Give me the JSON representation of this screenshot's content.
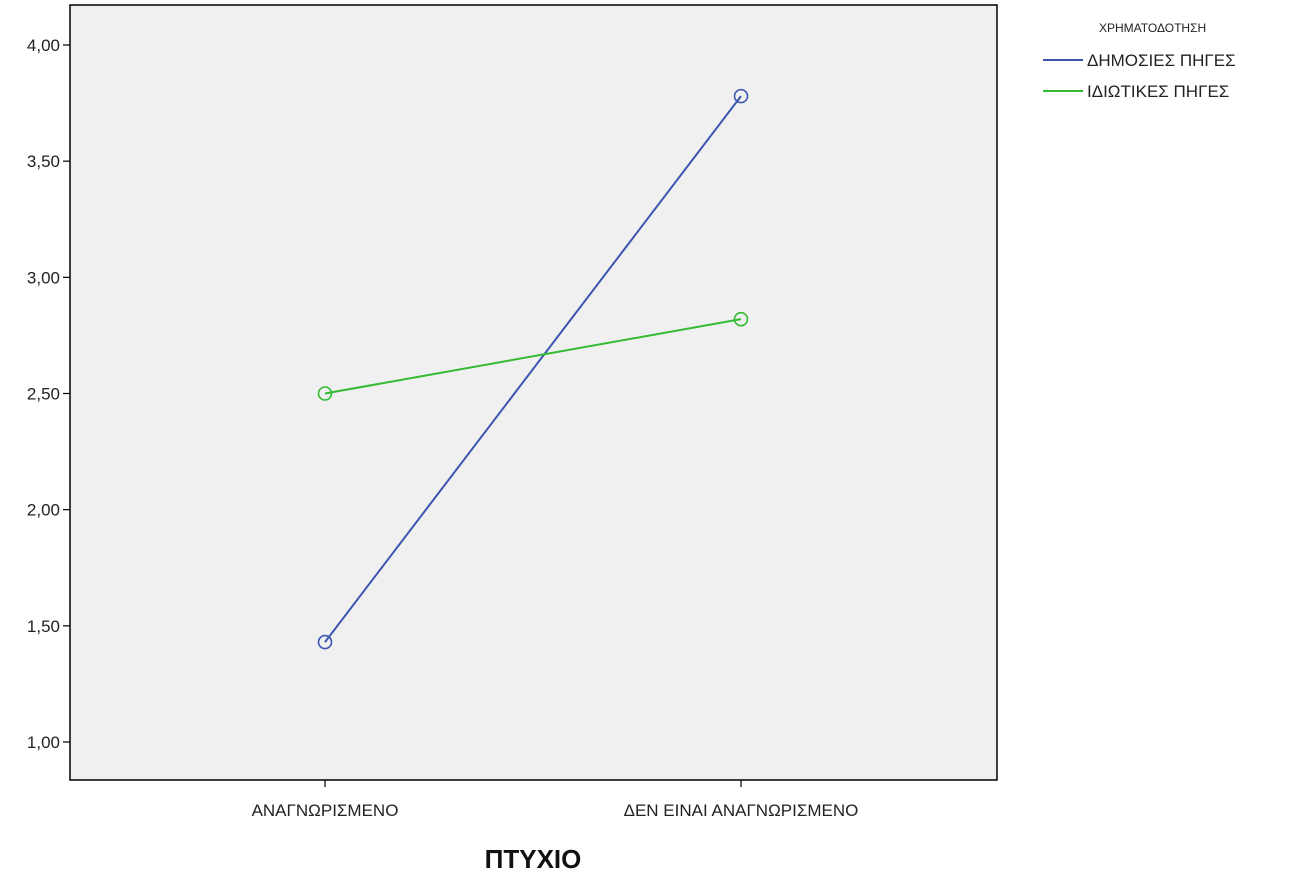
{
  "chart_data": {
    "type": "line",
    "title": "",
    "xlabel": "ΠΤΥΧΙΟ",
    "ylabel": "",
    "categories": [
      "ΑΝΑΓΝΩΡΙΣΜΕΝΟ",
      "ΔΕΝ ΕΙΝΑΙ ΑΝΑΓΝΩΡΙΣΜΕΝΟ"
    ],
    "ylim": [
      0.85,
      4.15
    ],
    "yticks": [
      1.0,
      1.5,
      2.0,
      2.5,
      3.0,
      3.5,
      4.0
    ],
    "ytick_labels": [
      "1,00",
      "1,50",
      "2,00",
      "2,50",
      "3,00",
      "3,50",
      "4,00"
    ],
    "grid": false,
    "legend_title": "ΧΡΗΜΑΤΟΔΟΤΗΣΗ",
    "legend_position": "top-right",
    "plot_background": "#f0f0f0",
    "series": [
      {
        "name": "ΔΗΜΟΣΙΕΣ ΠΗΓΕΣ",
        "color": "#3c55b0",
        "marker": "open-circle",
        "values": [
          1.43,
          3.78
        ]
      },
      {
        "name": "ΙΔΙΩΤΙΚΕΣ ΠΗΓΕΣ",
        "color": "#33bb33",
        "marker": "open-circle",
        "values": [
          2.5,
          2.82
        ]
      }
    ]
  }
}
